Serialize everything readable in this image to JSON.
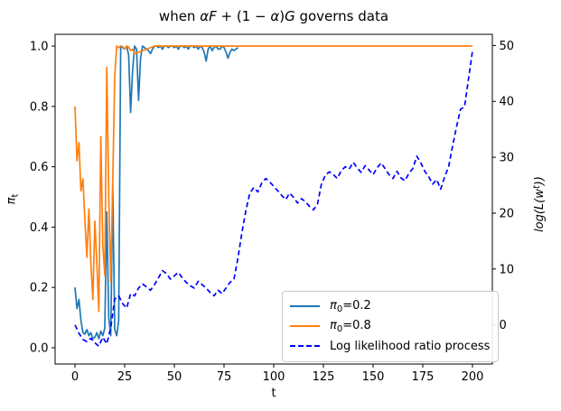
{
  "title": {
    "parts": [
      {
        "text": "when ",
        "italic": false
      },
      {
        "text": "αF",
        "italic": true
      },
      {
        "text": " + (1 − ",
        "italic": false
      },
      {
        "text": "α",
        "italic": true
      },
      {
        "text": ")",
        "italic": false
      },
      {
        "text": "G",
        "italic": true
      },
      {
        "text": " governs data",
        "italic": false
      }
    ]
  },
  "axes": {
    "x": {
      "label": "t",
      "tick_values": [
        0,
        25,
        50,
        75,
        100,
        125,
        150,
        175,
        200
      ]
    },
    "y_left": {
      "label_sym": "π",
      "label_sub": "t",
      "tick_values": [
        0.0,
        0.2,
        0.4,
        0.6,
        0.8,
        1.0
      ],
      "tick_labels": [
        "0.0",
        "0.2",
        "0.4",
        "0.6",
        "0.8",
        "1.0"
      ]
    },
    "y_right": {
      "label_pre": "log(L(w",
      "label_sup": "t",
      "label_post": "))",
      "tick_values": [
        0,
        10,
        20,
        30,
        40,
        50
      ]
    }
  },
  "legend": {
    "items": [
      {
        "key": "pi0-0.2",
        "sym": "π",
        "sub": "0",
        "rest": "=0.2",
        "color": "#1f77b4",
        "dashed": false
      },
      {
        "key": "pi0-0.8",
        "sym": "π",
        "sub": "0",
        "rest": "=0.8",
        "color": "#ff7f0e",
        "dashed": false
      },
      {
        "key": "llr",
        "sym": "",
        "sub": "",
        "rest": "Log likelihood ratio process",
        "color": "#0000ff",
        "dashed": true
      }
    ]
  },
  "chart_data": {
    "type": "line",
    "title": "when αF + (1 − α)G governs data",
    "xlabel": "t",
    "ylabel_left": "π_t",
    "ylabel_right": "log(L(w^t))",
    "xlim": [
      -10,
      210
    ],
    "ylim_left": [
      -0.054,
      1.039
    ],
    "ylim_right": [
      -7,
      52
    ],
    "grid": false,
    "legend_position": "lower right inside",
    "series": [
      {
        "name": "π0=0.2",
        "key": "pi0-0.2",
        "axis": "left",
        "color": "#1f77b4",
        "style": "solid",
        "x0": 0,
        "dx": 1,
        "y": [
          0.2,
          0.13,
          0.16,
          0.09,
          0.05,
          0.045,
          0.06,
          0.04,
          0.05,
          0.03,
          0.035,
          0.05,
          0.03,
          0.055,
          0.04,
          0.065,
          0.45,
          0.1,
          0.04,
          0.54,
          0.06,
          0.04,
          0.09,
          1.0,
          0.995,
          0.99,
          1.0,
          0.97,
          0.78,
          0.92,
          1.0,
          0.99,
          0.82,
          0.96,
          1.0,
          0.995,
          0.99,
          0.985,
          0.975,
          0.99,
          1.0,
          1.0,
          0.995,
          1.0,
          0.99,
          1.0,
          1.0,
          0.995,
          1.0,
          1.0,
          0.995,
          1.0,
          0.99,
          1.0,
          1.0,
          0.995,
          1.0,
          0.99,
          1.0,
          1.0,
          0.995,
          1.0,
          0.99,
          1.0,
          0.995,
          0.98,
          0.95,
          0.99,
          1.0,
          0.985,
          0.995,
          1.0,
          0.99,
          0.99,
          1.0,
          0.995,
          0.98,
          0.96,
          0.98,
          0.99,
          0.985,
          0.99,
          0.995
        ]
      },
      {
        "name": "π0=0.8",
        "key": "pi0-0.8",
        "axis": "left",
        "color": "#ff7f0e",
        "style": "solid",
        "x": [
          0,
          1,
          2,
          3,
          4,
          5,
          6,
          7,
          8,
          9,
          10,
          11,
          12,
          13,
          14,
          15,
          16,
          17,
          18,
          19,
          20,
          21,
          22,
          23,
          24,
          25,
          26,
          27,
          28,
          29,
          30,
          40,
          60,
          80,
          100,
          120,
          140,
          160,
          180,
          200
        ],
        "y": [
          0.8,
          0.62,
          0.68,
          0.52,
          0.56,
          0.42,
          0.3,
          0.46,
          0.28,
          0.16,
          0.42,
          0.28,
          0.12,
          0.7,
          0.34,
          0.24,
          0.93,
          0.5,
          0.22,
          0.55,
          0.9,
          1.0,
          0.995,
          1.0,
          0.998,
          0.99,
          1.0,
          0.997,
          0.985,
          0.99,
          0.975,
          1.0,
          1.0,
          1.0,
          1.0,
          1.0,
          1.0,
          1.0,
          1.0,
          1.0
        ]
      },
      {
        "name": "Log likelihood ratio process",
        "key": "llr",
        "axis": "right",
        "color": "#0000ff",
        "style": "dashed",
        "x0": 0,
        "dx": 2,
        "y": [
          0,
          -1.5,
          -2.6,
          -3.0,
          -2.4,
          -3.2,
          -3.8,
          -2.2,
          -3.4,
          -0.5,
          4.6,
          5.2,
          3.8,
          3.0,
          5.6,
          5.2,
          6.6,
          7.3,
          6.8,
          6.2,
          7.2,
          8.4,
          9.7,
          9.2,
          8.2,
          8.8,
          9.4,
          8.4,
          7.6,
          7.0,
          6.6,
          7.8,
          7.2,
          6.6,
          5.8,
          5.2,
          6.2,
          5.6,
          6.6,
          7.6,
          8.2,
          12.0,
          16.5,
          20.5,
          23.6,
          24.6,
          23.8,
          25.4,
          26.2,
          25.6,
          24.8,
          24.0,
          23.2,
          22.4,
          23.6,
          22.8,
          21.8,
          22.6,
          22.0,
          21.2,
          20.6,
          21.6,
          25.2,
          26.8,
          27.4,
          26.9,
          26.2,
          27.6,
          28.3,
          27.9,
          29.1,
          28.1,
          27.3,
          28.5,
          27.7,
          26.9,
          28.1,
          29.0,
          28.0,
          26.9,
          26.2,
          27.5,
          26.3,
          25.8,
          27.1,
          28.0,
          30.2,
          29.0,
          27.5,
          26.5,
          25.2,
          26.0,
          24.3,
          26.5,
          28.3,
          32.0,
          35.5,
          38.6,
          39.0,
          44.0,
          49.0
        ]
      }
    ]
  }
}
